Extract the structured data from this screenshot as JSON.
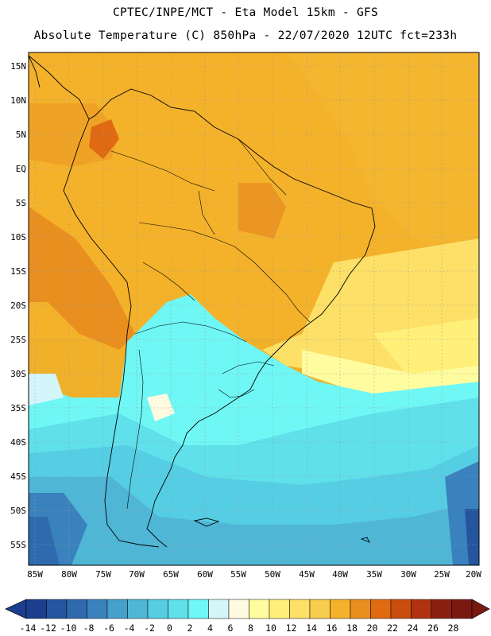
{
  "header": {
    "line1": "CPTEC/INPE/MCT -  Eta Model 15km - GFS",
    "line2": "Absolute Temperature (C) 850hPa - 22/07/2020 12UTC fct=233h"
  },
  "map": {
    "lat_labels": [
      "15N",
      "10N",
      "5N",
      "EQ",
      "5S",
      "10S",
      "15S",
      "20S",
      "25S",
      "30S",
      "35S",
      "40S",
      "45S",
      "50S",
      "55S"
    ],
    "lon_labels": [
      "85W",
      "80W",
      "75W",
      "70W",
      "65W",
      "60W",
      "55W",
      "50W",
      "45W",
      "40W",
      "35W",
      "30W",
      "25W",
      "20W"
    ]
  },
  "colorbar": {
    "labels": [
      "-14",
      "-12",
      "-10",
      "-8",
      "-6",
      "-4",
      "-2",
      "0",
      "2",
      "4",
      "6",
      "8",
      "10",
      "12",
      "14",
      "16",
      "18",
      "20",
      "22",
      "24",
      "26",
      "28"
    ],
    "colors": [
      "#1c3e8f",
      "#25559f",
      "#2f6aae",
      "#3a82bd",
      "#45a0cb",
      "#4fb6d6",
      "#55cde3",
      "#5fe0ea",
      "#6ff7f5",
      "#d3f6fb",
      "#fffbe0",
      "#fffc9f",
      "#fff07a",
      "#fde067",
      "#f7cd4f",
      "#f4b22a",
      "#e98f20",
      "#df6a12",
      "#cb4c0f",
      "#b0320e",
      "#8c2010",
      "#7a1912"
    ]
  }
}
